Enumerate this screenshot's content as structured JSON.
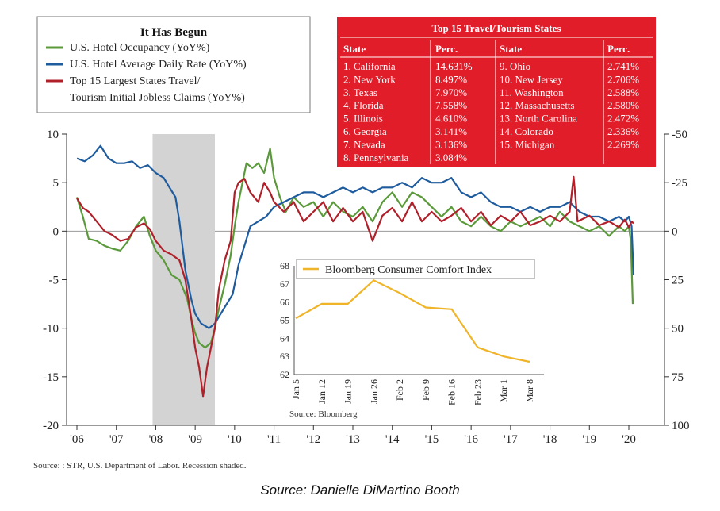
{
  "chart_data": {
    "type": "line",
    "title": "It Has Begun",
    "legend": [
      "U.S. Hotel Occupancy (YoY%)",
      "U.S. Hotel Average Daily Rate (YoY%)",
      "Top 15 Largest States Travel/",
      "Tourism Initial Jobless Claims (YoY%)"
    ],
    "x_ticks": [
      "'06",
      "'07",
      "'08",
      "'09",
      "'10",
      "'11",
      "'12",
      "'13",
      "'14",
      "'15",
      "'16",
      "'17",
      "'18",
      "'19",
      "'20"
    ],
    "y_left_ticks": [
      "10",
      "5",
      "0",
      "-5",
      "-10",
      "-15",
      "-20"
    ],
    "y_left_range": [
      -20,
      10
    ],
    "y_right_ticks": [
      "-50",
      "-25",
      "0",
      "25",
      "50",
      "75",
      "100"
    ],
    "y_right_range": [
      100,
      -50
    ],
    "recession_shaded": [
      2007.92,
      2009.5
    ],
    "colors": {
      "occupancy": "#5a9a3a",
      "adr": "#1f5c9e",
      "claims": "#b0202a",
      "inset": "#f0b429",
      "table": "#e11d2a",
      "recession": "#d3d3d3"
    },
    "series": [
      {
        "name": "occupancy",
        "axis": "left",
        "points": [
          [
            2006.0,
            3.5
          ],
          [
            2006.15,
            1.5
          ],
          [
            2006.3,
            -0.8
          ],
          [
            2006.5,
            -1.0
          ],
          [
            2006.7,
            -1.5
          ],
          [
            2006.9,
            -1.8
          ],
          [
            2007.1,
            -2.0
          ],
          [
            2007.3,
            -1.0
          ],
          [
            2007.5,
            0.5
          ],
          [
            2007.7,
            1.5
          ],
          [
            2007.85,
            -0.5
          ],
          [
            2008.0,
            -2.0
          ],
          [
            2008.2,
            -3.0
          ],
          [
            2008.4,
            -4.5
          ],
          [
            2008.6,
            -5.0
          ],
          [
            2008.8,
            -7.0
          ],
          [
            2008.9,
            -9.0
          ],
          [
            2009.0,
            -10.5
          ],
          [
            2009.1,
            -11.5
          ],
          [
            2009.25,
            -12.0
          ],
          [
            2009.4,
            -11.5
          ],
          [
            2009.5,
            -10.0
          ],
          [
            2009.6,
            -8.0
          ],
          [
            2009.75,
            -5.5
          ],
          [
            2009.9,
            -2.5
          ],
          [
            2010.0,
            0.5
          ],
          [
            2010.1,
            3.0
          ],
          [
            2010.2,
            5.0
          ],
          [
            2010.3,
            7.0
          ],
          [
            2010.45,
            6.5
          ],
          [
            2010.6,
            7.0
          ],
          [
            2010.75,
            6.0
          ],
          [
            2010.9,
            8.5
          ],
          [
            2011.0,
            5.5
          ],
          [
            2011.15,
            3.5
          ],
          [
            2011.3,
            2.0
          ],
          [
            2011.5,
            3.5
          ],
          [
            2011.75,
            2.5
          ],
          [
            2012.0,
            3.0
          ],
          [
            2012.25,
            1.5
          ],
          [
            2012.5,
            3.0
          ],
          [
            2012.75,
            2.0
          ],
          [
            2013.0,
            1.5
          ],
          [
            2013.25,
            2.5
          ],
          [
            2013.5,
            1.0
          ],
          [
            2013.75,
            3.0
          ],
          [
            2014.0,
            4.0
          ],
          [
            2014.25,
            2.5
          ],
          [
            2014.5,
            4.0
          ],
          [
            2014.75,
            3.5
          ],
          [
            2015.0,
            2.5
          ],
          [
            2015.25,
            1.5
          ],
          [
            2015.5,
            2.5
          ],
          [
            2015.75,
            1.0
          ],
          [
            2016.0,
            0.5
          ],
          [
            2016.25,
            1.5
          ],
          [
            2016.5,
            0.5
          ],
          [
            2016.75,
            0.0
          ],
          [
            2017.0,
            1.0
          ],
          [
            2017.25,
            0.5
          ],
          [
            2017.5,
            1.0
          ],
          [
            2017.75,
            1.5
          ],
          [
            2018.0,
            0.5
          ],
          [
            2018.25,
            2.0
          ],
          [
            2018.5,
            1.0
          ],
          [
            2018.75,
            0.5
          ],
          [
            2019.0,
            0.0
          ],
          [
            2019.25,
            0.5
          ],
          [
            2019.5,
            -0.5
          ],
          [
            2019.75,
            0.5
          ],
          [
            2019.9,
            0.0
          ],
          [
            2020.0,
            0.5
          ],
          [
            2020.05,
            -1.0
          ],
          [
            2020.1,
            -7.5
          ]
        ]
      },
      {
        "name": "adr",
        "axis": "left",
        "points": [
          [
            2006.0,
            7.5
          ],
          [
            2006.2,
            7.2
          ],
          [
            2006.4,
            7.8
          ],
          [
            2006.6,
            8.8
          ],
          [
            2006.8,
            7.5
          ],
          [
            2007.0,
            7.0
          ],
          [
            2007.2,
            7.0
          ],
          [
            2007.4,
            7.2
          ],
          [
            2007.6,
            6.5
          ],
          [
            2007.8,
            6.8
          ],
          [
            2008.0,
            6.0
          ],
          [
            2008.2,
            5.5
          ],
          [
            2008.35,
            4.5
          ],
          [
            2008.5,
            3.5
          ],
          [
            2008.6,
            1.0
          ],
          [
            2008.75,
            -4.0
          ],
          [
            2008.9,
            -7.0
          ],
          [
            2009.0,
            -8.5
          ],
          [
            2009.15,
            -9.5
          ],
          [
            2009.35,
            -10.0
          ],
          [
            2009.5,
            -9.5
          ],
          [
            2009.65,
            -8.5
          ],
          [
            2009.8,
            -7.5
          ],
          [
            2009.95,
            -6.5
          ],
          [
            2010.1,
            -3.5
          ],
          [
            2010.25,
            -1.5
          ],
          [
            2010.4,
            0.5
          ],
          [
            2010.6,
            1.0
          ],
          [
            2010.8,
            1.5
          ],
          [
            2011.0,
            2.5
          ],
          [
            2011.25,
            3.0
          ],
          [
            2011.5,
            3.5
          ],
          [
            2011.75,
            4.0
          ],
          [
            2012.0,
            4.0
          ],
          [
            2012.25,
            3.5
          ],
          [
            2012.5,
            4.0
          ],
          [
            2012.75,
            4.5
          ],
          [
            2013.0,
            4.0
          ],
          [
            2013.25,
            4.5
          ],
          [
            2013.5,
            4.0
          ],
          [
            2013.75,
            4.5
          ],
          [
            2014.0,
            4.5
          ],
          [
            2014.25,
            5.0
          ],
          [
            2014.5,
            4.5
          ],
          [
            2014.75,
            5.5
          ],
          [
            2015.0,
            5.0
          ],
          [
            2015.25,
            5.0
          ],
          [
            2015.5,
            5.5
          ],
          [
            2015.75,
            4.0
          ],
          [
            2016.0,
            3.5
          ],
          [
            2016.25,
            4.0
          ],
          [
            2016.5,
            3.0
          ],
          [
            2016.75,
            2.5
          ],
          [
            2017.0,
            2.5
          ],
          [
            2017.25,
            2.0
          ],
          [
            2017.5,
            2.5
          ],
          [
            2017.75,
            2.0
          ],
          [
            2018.0,
            2.5
          ],
          [
            2018.25,
            2.5
          ],
          [
            2018.5,
            3.0
          ],
          [
            2018.75,
            2.0
          ],
          [
            2019.0,
            1.5
          ],
          [
            2019.25,
            1.5
          ],
          [
            2019.5,
            1.0
          ],
          [
            2019.75,
            1.5
          ],
          [
            2019.9,
            1.0
          ],
          [
            2020.0,
            1.5
          ],
          [
            2020.07,
            0.5
          ],
          [
            2020.12,
            -4.5
          ]
        ]
      },
      {
        "name": "claims",
        "axis": "right",
        "points": [
          [
            2006.0,
            -17
          ],
          [
            2006.15,
            -12
          ],
          [
            2006.3,
            -10
          ],
          [
            2006.5,
            -5
          ],
          [
            2006.7,
            0
          ],
          [
            2006.9,
            2
          ],
          [
            2007.1,
            5
          ],
          [
            2007.3,
            4
          ],
          [
            2007.5,
            -2
          ],
          [
            2007.7,
            -4
          ],
          [
            2007.85,
            -1
          ],
          [
            2008.0,
            5
          ],
          [
            2008.2,
            10
          ],
          [
            2008.4,
            12
          ],
          [
            2008.6,
            15
          ],
          [
            2008.75,
            25
          ],
          [
            2008.9,
            45
          ],
          [
            2009.0,
            60
          ],
          [
            2009.1,
            70
          ],
          [
            2009.2,
            85
          ],
          [
            2009.3,
            70
          ],
          [
            2009.4,
            60
          ],
          [
            2009.5,
            50
          ],
          [
            2009.6,
            30
          ],
          [
            2009.75,
            15
          ],
          [
            2009.9,
            5
          ],
          [
            2010.0,
            -20
          ],
          [
            2010.1,
            -25
          ],
          [
            2010.25,
            -27
          ],
          [
            2010.4,
            -20
          ],
          [
            2010.6,
            -15
          ],
          [
            2010.75,
            -25
          ],
          [
            2010.9,
            -20
          ],
          [
            2011.0,
            -15
          ],
          [
            2011.25,
            -10
          ],
          [
            2011.5,
            -15
          ],
          [
            2011.75,
            -5
          ],
          [
            2012.0,
            -10
          ],
          [
            2012.25,
            -15
          ],
          [
            2012.5,
            -5
          ],
          [
            2012.75,
            -12
          ],
          [
            2013.0,
            -5
          ],
          [
            2013.25,
            -10
          ],
          [
            2013.5,
            5
          ],
          [
            2013.75,
            -8
          ],
          [
            2014.0,
            -12
          ],
          [
            2014.25,
            -5
          ],
          [
            2014.5,
            -15
          ],
          [
            2014.75,
            -5
          ],
          [
            2015.0,
            -10
          ],
          [
            2015.25,
            -5
          ],
          [
            2015.5,
            -8
          ],
          [
            2015.75,
            -12
          ],
          [
            2016.0,
            -5
          ],
          [
            2016.25,
            -10
          ],
          [
            2016.5,
            -3
          ],
          [
            2016.75,
            -8
          ],
          [
            2017.0,
            -5
          ],
          [
            2017.25,
            -10
          ],
          [
            2017.5,
            -3
          ],
          [
            2017.75,
            -5
          ],
          [
            2018.0,
            -8
          ],
          [
            2018.25,
            -5
          ],
          [
            2018.5,
            -10
          ],
          [
            2018.6,
            -28
          ],
          [
            2018.7,
            -5
          ],
          [
            2019.0,
            -8
          ],
          [
            2019.25,
            -3
          ],
          [
            2019.5,
            -5
          ],
          [
            2019.75,
            -2
          ],
          [
            2019.9,
            -6
          ],
          [
            2020.0,
            -2
          ],
          [
            2020.07,
            -5
          ],
          [
            2020.12,
            -4
          ]
        ]
      }
    ],
    "inset": {
      "title": "Bloomberg Consumer Comfort Index",
      "source": "Source: Bloomberg",
      "x": [
        "Jan 5",
        "Jan 12",
        "Jan 19",
        "Jan 26",
        "Feb 2",
        "Feb 9",
        "Feb 16",
        "Feb 23",
        "Mar 1",
        "Mar 8"
      ],
      "values": [
        65.1,
        65.9,
        65.9,
        67.2,
        66.5,
        65.7,
        65.6,
        63.5,
        63.0,
        62.7
      ],
      "ylim": [
        62,
        68
      ],
      "y_ticks": [
        "68",
        "67",
        "66",
        "65",
        "64",
        "63",
        "62"
      ]
    },
    "table": {
      "title": "Top 15 Travel/Tourism States",
      "headers": [
        "State",
        "Perc.",
        "State",
        "Perc."
      ],
      "left": [
        {
          "state": "1. California",
          "perc": "14.631%"
        },
        {
          "state": "2. New York",
          "perc": "8.497%"
        },
        {
          "state": "3. Texas",
          "perc": "7.970%"
        },
        {
          "state": "4. Florida",
          "perc": "7.558%"
        },
        {
          "state": "5. Illinois",
          "perc": "4.610%"
        },
        {
          "state": "6. Georgia",
          "perc": "3.141%"
        },
        {
          "state": "7. Nevada",
          "perc": "3.136%"
        },
        {
          "state": "8. Pennsylvania",
          "perc": "3.084%"
        }
      ],
      "right": [
        {
          "state": "9. Ohio",
          "perc": "2.741%"
        },
        {
          "state": "10. New Jersey",
          "perc": "2.706%"
        },
        {
          "state": "11. Washington",
          "perc": "2.588%"
        },
        {
          "state": "12. Massachusetts",
          "perc": "2.580%"
        },
        {
          "state": "13. North Carolina",
          "perc": "2.472%"
        },
        {
          "state": "14. Colorado",
          "perc": "2.336%"
        },
        {
          "state": "15. Michigan",
          "perc": "2.269%"
        }
      ]
    },
    "source_note": "Source: : STR, U.S. Department of Labor. Recession shaded."
  },
  "credit": "Source: Danielle DiMartino Booth"
}
